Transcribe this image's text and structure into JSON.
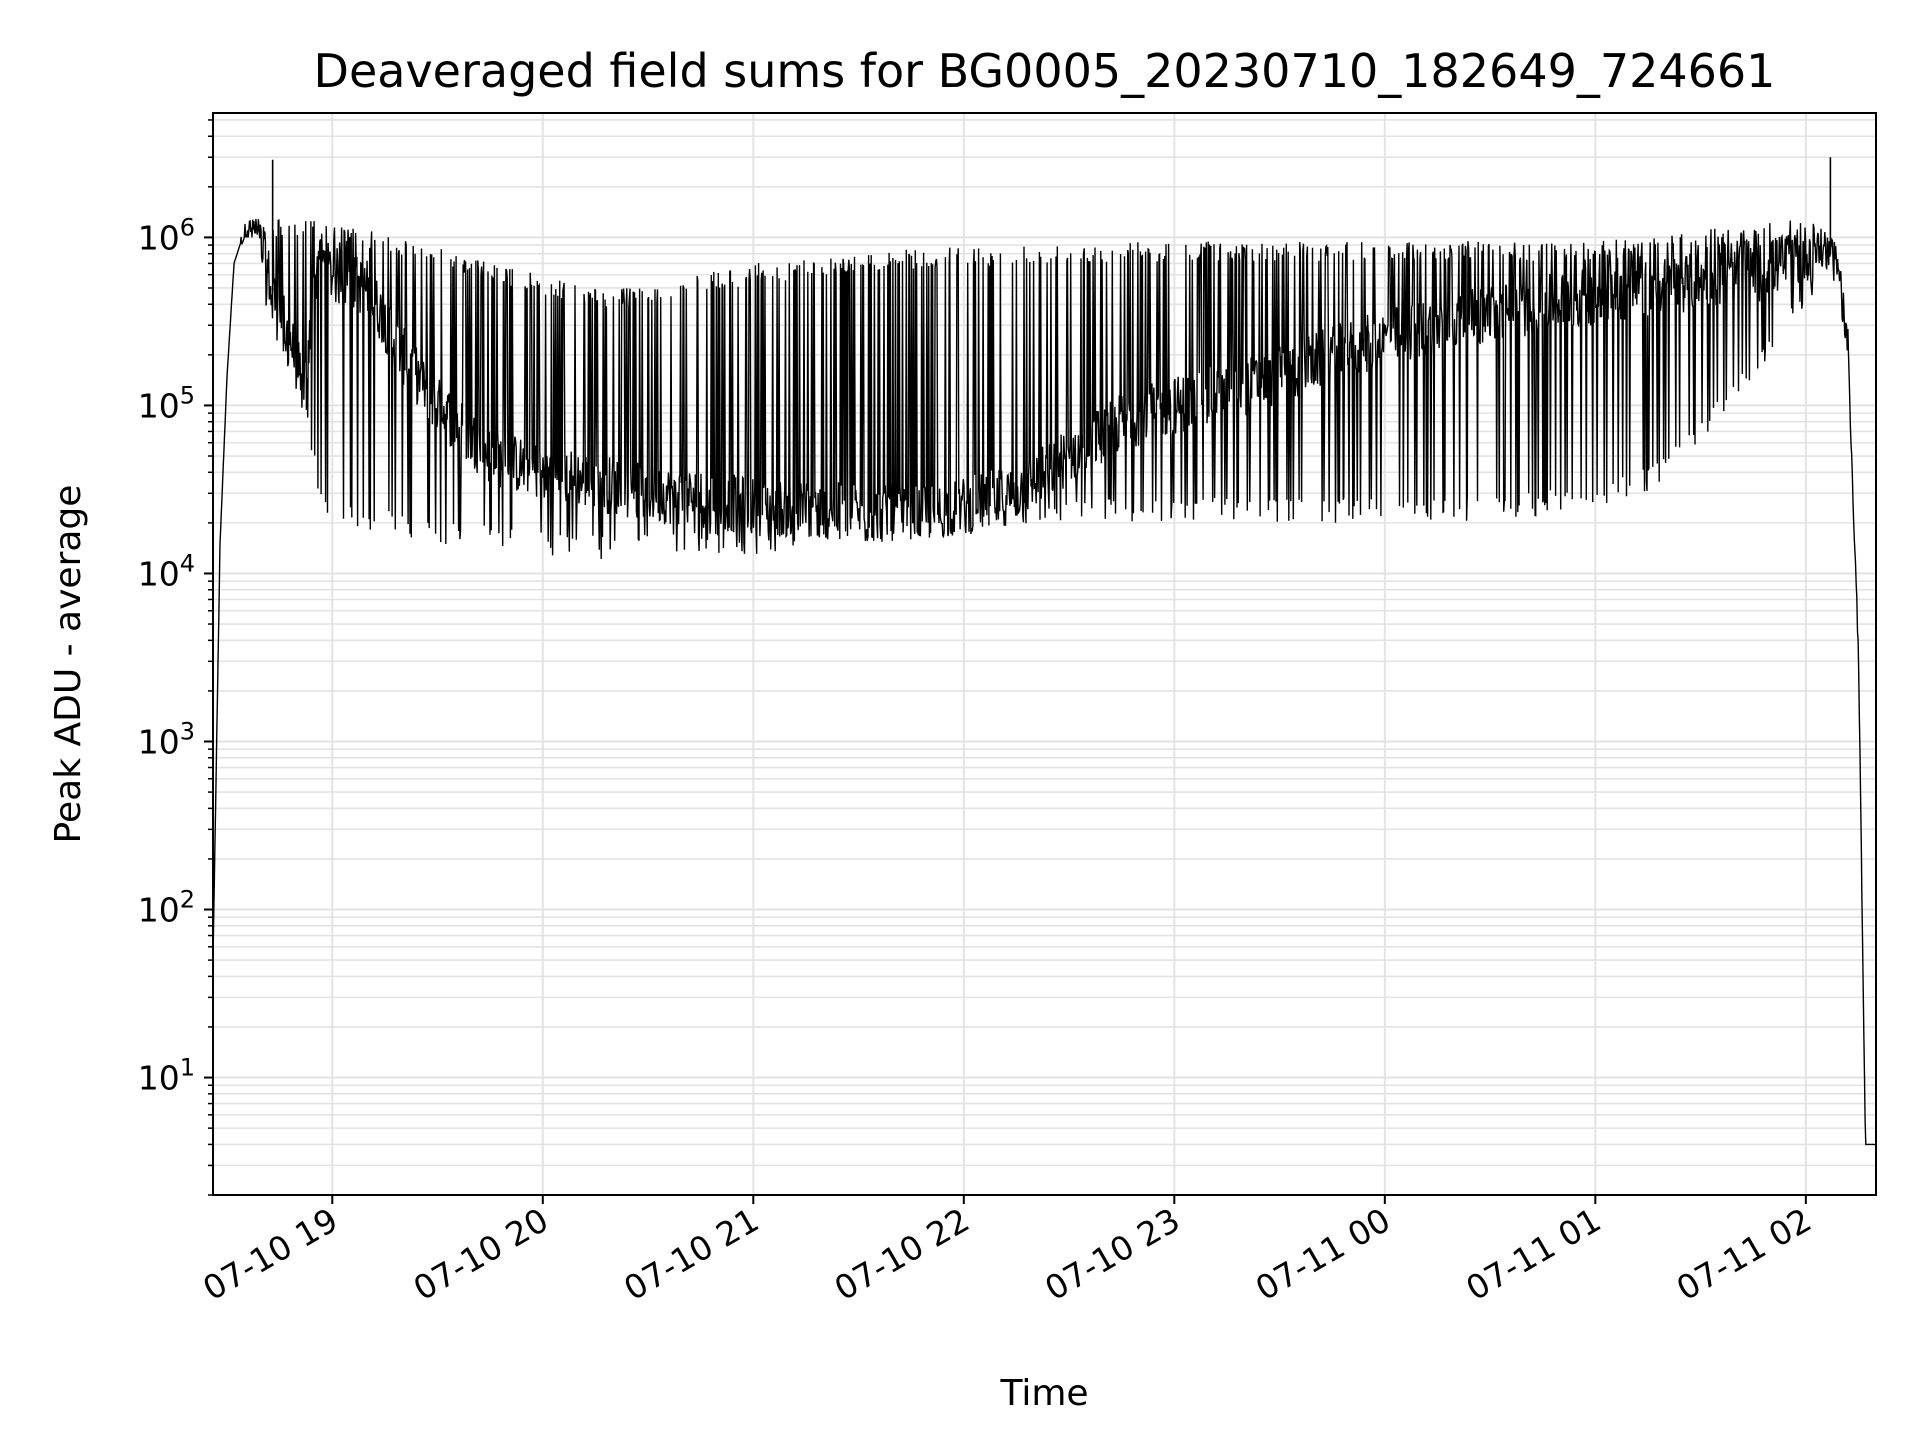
{
  "chart_data": {
    "type": "line",
    "title": "Deaveraged field sums for BG0005_20230710_182649_724661",
    "xlabel": "Time",
    "ylabel": "Peak ADU - average",
    "yscale": "log",
    "grid": true,
    "line_color": "#000000",
    "grid_color": "#e3e3e3",
    "x_ticks": [
      "07-10 19",
      "07-10 20",
      "07-10 21",
      "07-10 22",
      "07-10 23",
      "07-11 00",
      "07-11 01",
      "07-11 02"
    ],
    "y_ticks": [
      {
        "base": "10",
        "exp": "1",
        "value": 10
      },
      {
        "base": "10",
        "exp": "2",
        "value": 100
      },
      {
        "base": "10",
        "exp": "3",
        "value": 1000
      },
      {
        "base": "10",
        "exp": "4",
        "value": 10000
      },
      {
        "base": "10",
        "exp": "5",
        "value": 100000
      },
      {
        "base": "10",
        "exp": "6",
        "value": 1000000
      }
    ],
    "xlim": [
      "2023-07-10 18:26",
      "2023-07-11 02:20"
    ],
    "ylim": [
      2,
      5500000
    ],
    "series": [
      {
        "x": [
          "2023-07-10 18:26",
          "2023-07-10 18:28",
          "2023-07-10 18:30",
          "2023-07-10 18:32",
          "2023-07-10 18:35",
          "2023-07-10 18:38",
          "2023-07-10 18:41",
          "2023-07-10 18:44",
          "2023-07-10 18:48",
          "2023-07-10 18:52",
          "2023-07-10 18:56",
          "2023-07-10 19:00",
          "2023-07-10 19:10",
          "2023-07-10 19:20",
          "2023-07-10 19:30",
          "2023-07-10 19:45",
          "2023-07-10 20:00",
          "2023-07-10 20:15",
          "2023-07-10 20:30",
          "2023-07-10 20:45",
          "2023-07-10 21:00",
          "2023-07-10 21:15",
          "2023-07-10 21:30",
          "2023-07-10 21:45",
          "2023-07-10 22:00",
          "2023-07-10 22:15",
          "2023-07-10 22:30",
          "2023-07-10 22:45",
          "2023-07-10 23:00",
          "2023-07-10 23:15",
          "2023-07-10 23:30",
          "2023-07-10 23:45",
          "2023-07-11 00:00",
          "2023-07-11 00:15",
          "2023-07-11 00:30",
          "2023-07-11 00:45",
          "2023-07-11 01:00",
          "2023-07-11 01:15",
          "2023-07-11 01:30",
          "2023-07-11 01:45",
          "2023-07-11 02:00",
          "2023-07-11 02:05",
          "2023-07-11 02:09",
          "2023-07-11 02:12",
          "2023-07-11 02:15",
          "2023-07-11 02:17",
          "2023-07-11 02:20"
        ],
        "values": [
          50,
          15000,
          150000,
          700000,
          1100000,
          1150000,
          700000,
          400000,
          250000,
          120000,
          800000,
          600000,
          500000,
          200000,
          100000,
          50000,
          40000,
          35000,
          30000,
          28000,
          25000,
          24000,
          23000,
          22000,
          25000,
          30000,
          50000,
          80000,
          100000,
          120000,
          150000,
          200000,
          250000,
          300000,
          350000,
          400000,
          450000,
          500000,
          550000,
          600000,
          800000,
          900000,
          700000,
          200000,
          3000,
          4,
          4
        ],
        "upper": [
          50,
          15000,
          150000,
          700000,
          1200000,
          1300000,
          1250000,
          1300000,
          1350000,
          1300000,
          1250000,
          1200000,
          1100000,
          1000000,
          900000,
          700000,
          600000,
          500000,
          500000,
          600000,
          700000,
          750000,
          800000,
          850000,
          880000,
          900000,
          920000,
          950000,
          950000,
          950000,
          950000,
          950000,
          950000,
          950000,
          950000,
          950000,
          950000,
          1000000,
          1100000,
          1200000,
          1300000,
          1100000,
          900000,
          300000,
          4000,
          4,
          4
        ],
        "lower": [
          50,
          15000,
          150000,
          700000,
          1000000,
          1000000,
          400000,
          250000,
          150000,
          80000,
          30000,
          20000,
          18000,
          16000,
          15000,
          14000,
          13000,
          12000,
          12000,
          13000,
          13000,
          14000,
          15000,
          16000,
          17000,
          18000,
          19000,
          20000,
          20000,
          20000,
          20000,
          20000,
          20000,
          20000,
          21000,
          22000,
          25000,
          30000,
          60000,
          150000,
          350000,
          700000,
          500000,
          200000,
          3000,
          4,
          4
        ]
      }
    ],
    "spikes": [
      {
        "x": "2023-07-10 18:43",
        "value": 2900000
      },
      {
        "x": "2023-07-11 02:07",
        "value": 3000000
      }
    ]
  }
}
